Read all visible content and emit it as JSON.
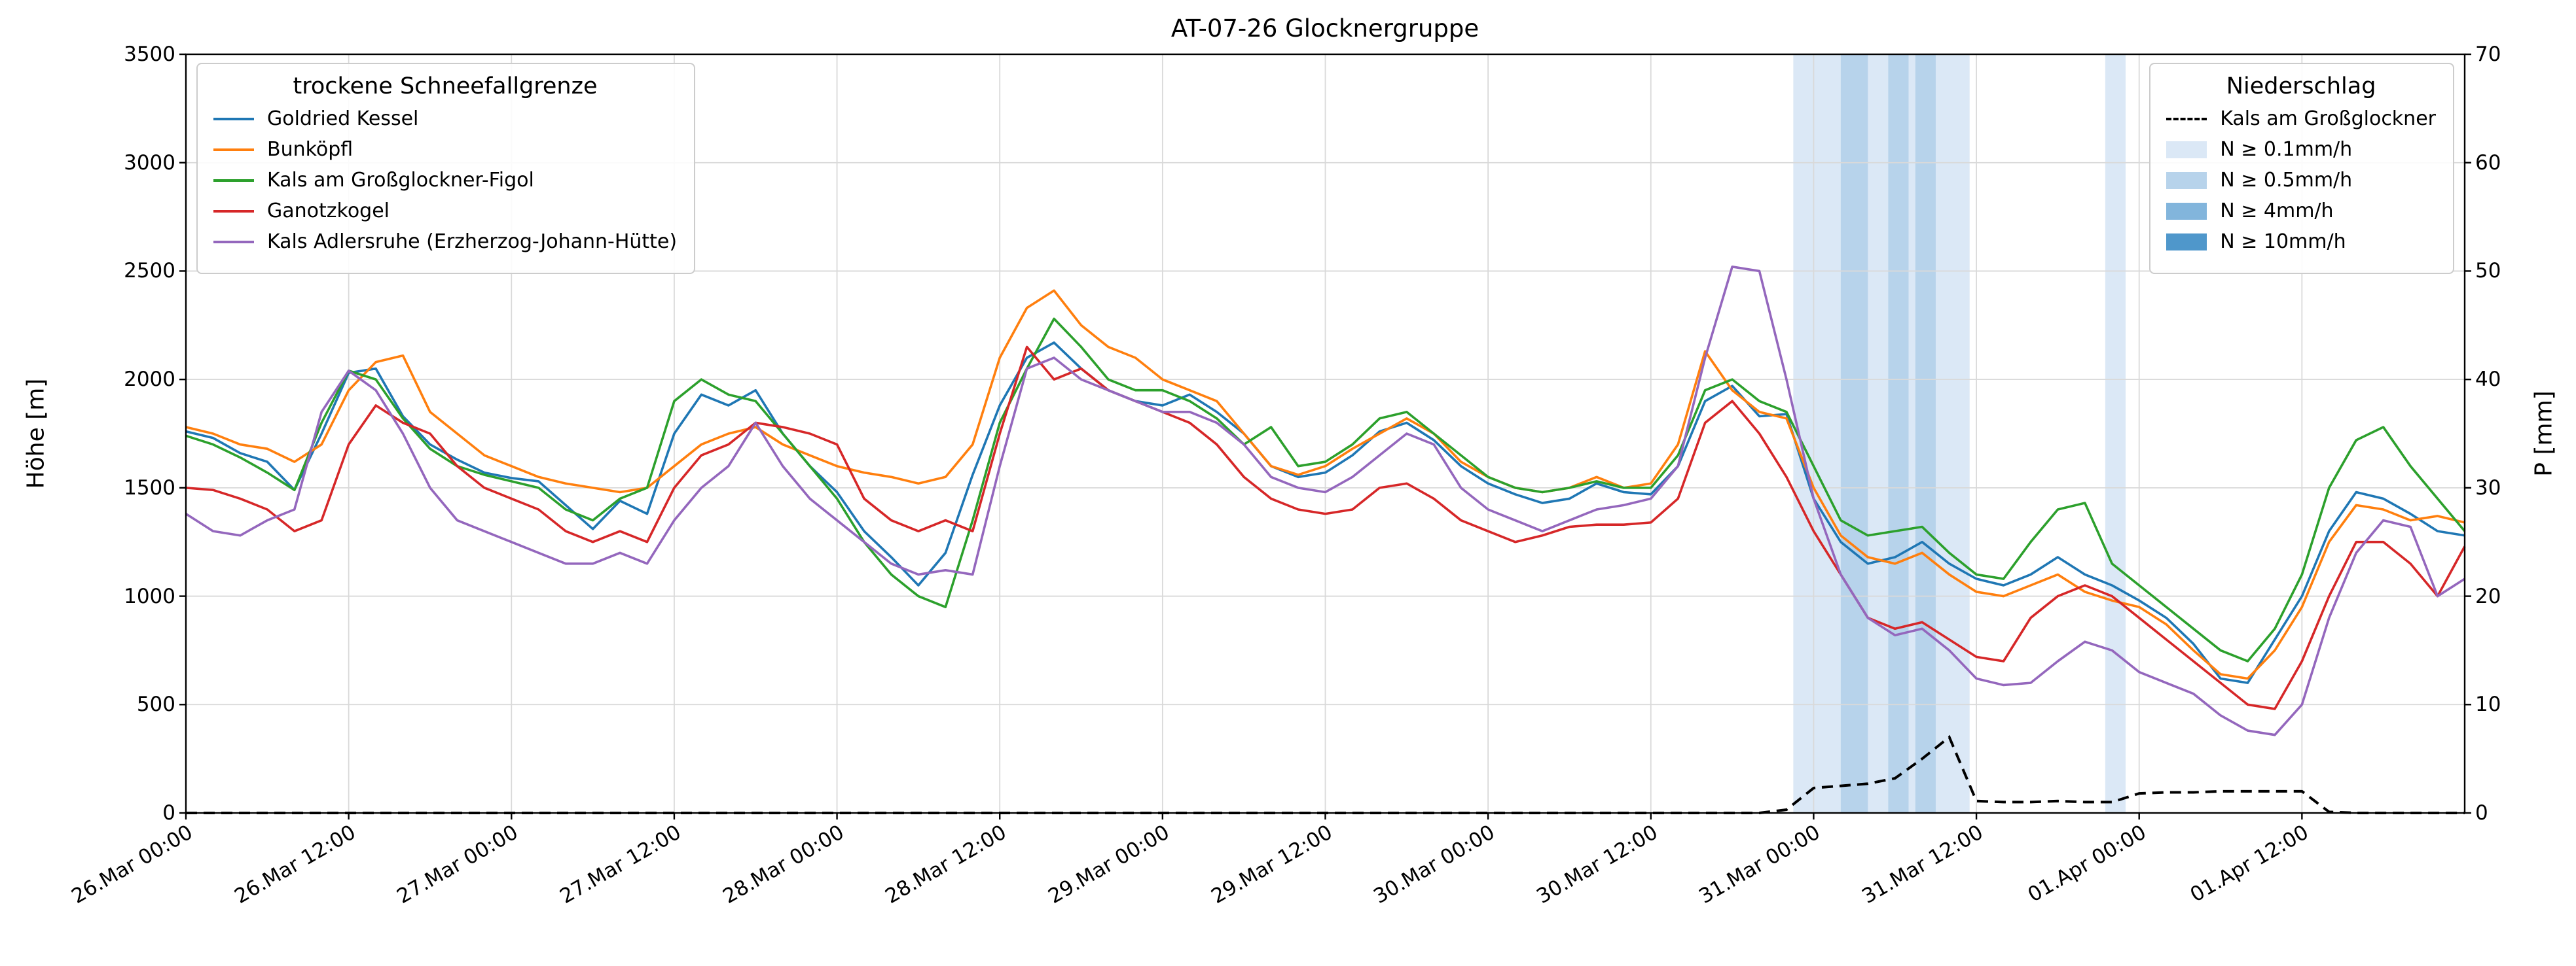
{
  "chart_data": {
    "type": "line",
    "title": "AT-07-26 Glocknergruppe",
    "ylabel_left": "Höhe [m]",
    "ylabel_right": "P [mm]",
    "ylim_left": [
      0,
      3500
    ],
    "ylim_right": [
      0,
      70
    ],
    "yticks_left": [
      0,
      500,
      1000,
      1500,
      2000,
      2500,
      3000,
      3500
    ],
    "yticks_right": [
      0,
      10,
      20,
      30,
      40,
      50,
      60,
      70
    ],
    "grid": true,
    "x_unit": "hours since 26.Mar 00:00",
    "xlim": [
      0,
      168
    ],
    "x_step_hours": 2,
    "xticks": [
      {
        "h": 0,
        "label": "26.Mar 00:00"
      },
      {
        "h": 12,
        "label": "26.Mar 12:00"
      },
      {
        "h": 24,
        "label": "27.Mar 00:00"
      },
      {
        "h": 36,
        "label": "27.Mar 12:00"
      },
      {
        "h": 48,
        "label": "28.Mar 00:00"
      },
      {
        "h": 60,
        "label": "28.Mar 12:00"
      },
      {
        "h": 72,
        "label": "29.Mar 00:00"
      },
      {
        "h": 84,
        "label": "29.Mar 12:00"
      },
      {
        "h": 96,
        "label": "30.Mar 00:00"
      },
      {
        "h": 108,
        "label": "30.Mar 12:00"
      },
      {
        "h": 120,
        "label": "31.Mar 00:00"
      },
      {
        "h": 132,
        "label": "31.Mar 12:00"
      },
      {
        "h": 144,
        "label": "01.Apr 00:00"
      },
      {
        "h": 156,
        "label": "01.Apr 12:00"
      }
    ],
    "series": [
      {
        "name": "Goldried Kessel",
        "color": "#1f77b4",
        "values": [
          1760,
          1730,
          1660,
          1620,
          1490,
          1750,
          2030,
          2050,
          1830,
          1700,
          1630,
          1570,
          1545,
          1530,
          1420,
          1310,
          1440,
          1380,
          1750,
          1930,
          1880,
          1950,
          1750,
          1600,
          1480,
          1300,
          1180,
          1050,
          1200,
          1560,
          1880,
          2100,
          2170,
          2050,
          1950,
          1900,
          1880,
          1930,
          1850,
          1750,
          1600,
          1550,
          1570,
          1650,
          1760,
          1800,
          1720,
          1600,
          1520,
          1470,
          1430,
          1450,
          1520,
          1480,
          1470,
          1600,
          1900,
          1970,
          1830,
          1840,
          1450,
          1250,
          1150,
          1180,
          1250,
          1150,
          1080,
          1050,
          1100,
          1180,
          1100,
          1050,
          980,
          900,
          780,
          620,
          600,
          800,
          1000,
          1300,
          1480,
          1450,
          1380,
          1300,
          1280
        ]
      },
      {
        "name": "Bunköpfl",
        "color": "#ff7f0e",
        "values": [
          1780,
          1750,
          1700,
          1680,
          1620,
          1700,
          1950,
          2080,
          2110,
          1850,
          1750,
          1650,
          1600,
          1550,
          1520,
          1500,
          1480,
          1500,
          1600,
          1700,
          1750,
          1780,
          1700,
          1650,
          1600,
          1570,
          1550,
          1520,
          1550,
          1700,
          2100,
          2330,
          2410,
          2250,
          2150,
          2100,
          2000,
          1950,
          1900,
          1750,
          1600,
          1560,
          1600,
          1680,
          1750,
          1820,
          1750,
          1620,
          1550,
          1500,
          1480,
          1500,
          1550,
          1500,
          1520,
          1700,
          2130,
          1950,
          1850,
          1820,
          1500,
          1280,
          1180,
          1150,
          1200,
          1100,
          1020,
          1000,
          1050,
          1100,
          1020,
          980,
          950,
          870,
          750,
          640,
          620,
          750,
          950,
          1250,
          1420,
          1400,
          1350,
          1370,
          1340
        ]
      },
      {
        "name": "Kals am Großglockner-Figol",
        "color": "#2ca02c",
        "values": [
          1740,
          1700,
          1640,
          1570,
          1490,
          1800,
          2040,
          2000,
          1820,
          1680,
          1600,
          1560,
          1530,
          1500,
          1400,
          1350,
          1450,
          1500,
          1900,
          2000,
          1930,
          1900,
          1750,
          1600,
          1450,
          1250,
          1100,
          1000,
          950,
          1350,
          1800,
          2050,
          2280,
          2150,
          2000,
          1950,
          1950,
          1900,
          1820,
          1700,
          1780,
          1600,
          1620,
          1700,
          1820,
          1850,
          1750,
          1650,
          1550,
          1500,
          1480,
          1500,
          1530,
          1500,
          1500,
          1650,
          1950,
          2000,
          1900,
          1850,
          1600,
          1350,
          1280,
          1300,
          1320,
          1200,
          1100,
          1080,
          1250,
          1400,
          1430,
          1150,
          1050,
          950,
          850,
          750,
          700,
          850,
          1100,
          1500,
          1720,
          1780,
          1600,
          1450,
          1300
        ]
      },
      {
        "name": "Ganotzkogel",
        "color": "#d62728",
        "values": [
          1500,
          1490,
          1450,
          1400,
          1300,
          1350,
          1700,
          1880,
          1800,
          1750,
          1600,
          1500,
          1450,
          1400,
          1300,
          1250,
          1300,
          1250,
          1500,
          1650,
          1700,
          1800,
          1780,
          1750,
          1700,
          1450,
          1350,
          1300,
          1350,
          1300,
          1750,
          2150,
          2000,
          2050,
          1950,
          1900,
          1850,
          1800,
          1700,
          1550,
          1450,
          1400,
          1380,
          1400,
          1500,
          1520,
          1450,
          1350,
          1300,
          1250,
          1280,
          1320,
          1330,
          1330,
          1340,
          1450,
          1800,
          1900,
          1750,
          1550,
          1300,
          1100,
          900,
          850,
          880,
          800,
          720,
          700,
          900,
          1000,
          1050,
          1000,
          900,
          800,
          700,
          600,
          500,
          480,
          700,
          1000,
          1250,
          1250,
          1150,
          1000,
          1230
        ]
      },
      {
        "name": "Kals Adlersruhe (Erzherzog-Johann-Hütte)",
        "color": "#9467bd",
        "values": [
          1380,
          1300,
          1280,
          1350,
          1400,
          1850,
          2040,
          1950,
          1750,
          1500,
          1350,
          1300,
          1250,
          1200,
          1150,
          1150,
          1200,
          1150,
          1350,
          1500,
          1600,
          1800,
          1600,
          1450,
          1350,
          1250,
          1150,
          1100,
          1120,
          1100,
          1600,
          2050,
          2100,
          2000,
          1950,
          1900,
          1850,
          1850,
          1800,
          1700,
          1550,
          1500,
          1480,
          1550,
          1650,
          1750,
          1700,
          1500,
          1400,
          1350,
          1300,
          1350,
          1400,
          1420,
          1450,
          1600,
          2100,
          2520,
          2500,
          2000,
          1450,
          1100,
          900,
          820,
          850,
          750,
          620,
          590,
          600,
          700,
          790,
          750,
          650,
          600,
          550,
          450,
          380,
          360,
          500,
          900,
          1200,
          1350,
          1320,
          1000,
          1080
        ]
      }
    ],
    "precipitation_line": {
      "name": "Kals am Großglockner",
      "color": "#000000",
      "style": "dashed",
      "axis": "right",
      "values_mm": [
        0,
        0,
        0,
        0,
        0,
        0,
        0,
        0,
        0,
        0,
        0,
        0,
        0,
        0,
        0,
        0,
        0,
        0,
        0,
        0,
        0,
        0,
        0,
        0,
        0,
        0,
        0,
        0,
        0,
        0,
        0,
        0,
        0,
        0,
        0,
        0,
        0,
        0,
        0,
        0,
        0,
        0,
        0,
        0,
        0,
        0,
        0,
        0,
        0,
        0,
        0,
        0,
        0,
        0,
        0,
        0,
        0,
        0,
        0,
        0.3,
        2.3,
        2.5,
        2.7,
        3.2,
        5,
        7,
        1.1,
        1,
        1,
        1.1,
        1,
        1,
        1.8,
        1.9,
        1.9,
        2,
        2,
        2,
        2,
        0.1,
        0,
        0,
        0,
        0,
        0
      ]
    },
    "precipitation_bands": [
      {
        "start_h": 118.5,
        "end_h": 131.5,
        "level": "0.1"
      },
      {
        "start_h": 122,
        "end_h": 124,
        "level": "0.5"
      },
      {
        "start_h": 125.5,
        "end_h": 127,
        "level": "0.5"
      },
      {
        "start_h": 127.5,
        "end_h": 129,
        "level": "0.5"
      },
      {
        "start_h": 141.5,
        "end_h": 143,
        "level": "0.1"
      }
    ],
    "band_colors": {
      "0.1": "#dbe8f6",
      "0.5": "#b7d3eb",
      "4": "#82b5dc",
      "10": "#4f97cb"
    },
    "grid_color": "#d9d9d9",
    "frame_color": "#000000"
  },
  "legend_left": {
    "title": "trockene Schneefallgrenze"
  },
  "legend_right": {
    "title": "Niederschlag",
    "line_entry": "Kals am Großglockner",
    "patch_entries": [
      {
        "label": "N ≥ 0.1mm/h",
        "color": "#dbe8f6"
      },
      {
        "label": "N ≥ 0.5mm/h",
        "color": "#b7d3eb"
      },
      {
        "label": "N ≥ 4mm/h",
        "color": "#82b5dc"
      },
      {
        "label": "N ≥ 10mm/h",
        "color": "#4f97cb"
      }
    ]
  }
}
